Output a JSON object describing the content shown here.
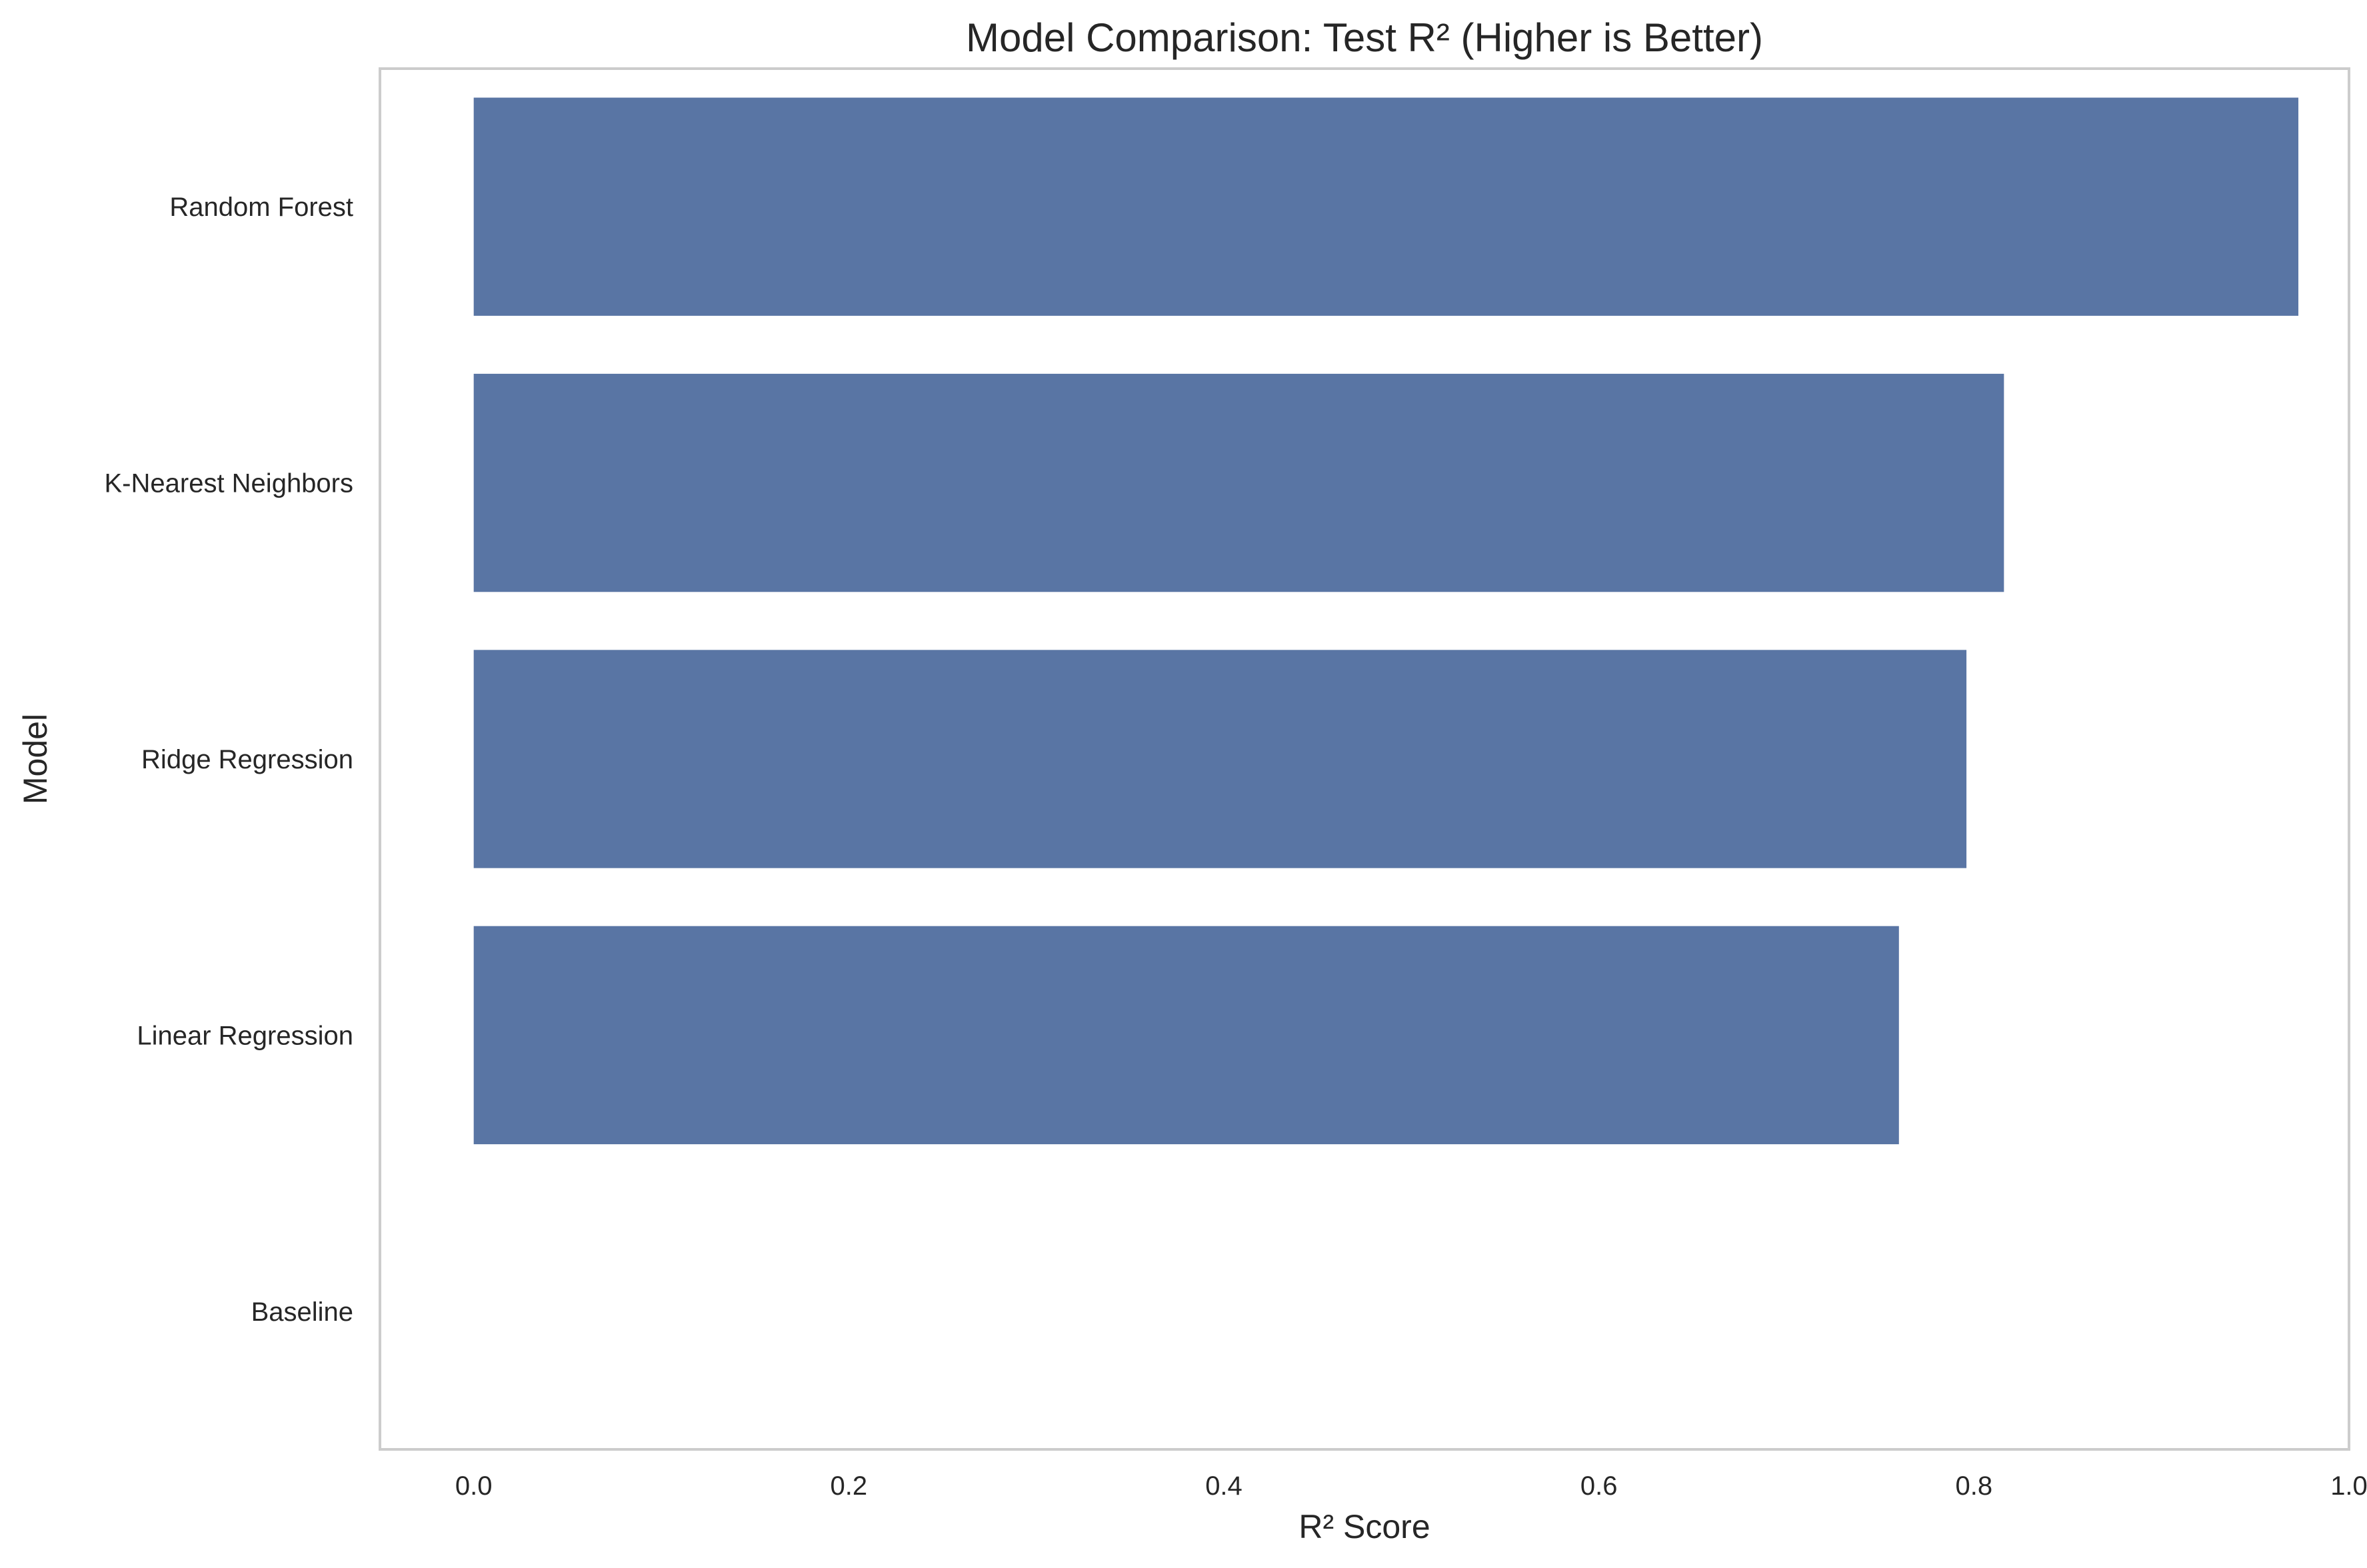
{
  "chart_data": {
    "type": "bar",
    "orientation": "horizontal",
    "title": "Model Comparison: Test R² (Higher is Better)",
    "xlabel": "R² Score",
    "ylabel": "Model",
    "categories": [
      "Random Forest",
      "K-Nearest Neighbors",
      "Ridge Regression",
      "Linear Regression",
      "Baseline"
    ],
    "values": [
      0.973,
      0.816,
      0.796,
      0.76,
      0.0
    ],
    "xlim": [
      -0.05,
      1.0
    ],
    "xticks": [
      0.0,
      0.2,
      0.4,
      0.6,
      0.8,
      1.0
    ],
    "xtick_labels": [
      "0.0",
      "0.2",
      "0.4",
      "0.6",
      "0.8",
      "1.0"
    ],
    "grid": false,
    "bar_color": "#5975a4",
    "spine_color": "#cccccc"
  }
}
